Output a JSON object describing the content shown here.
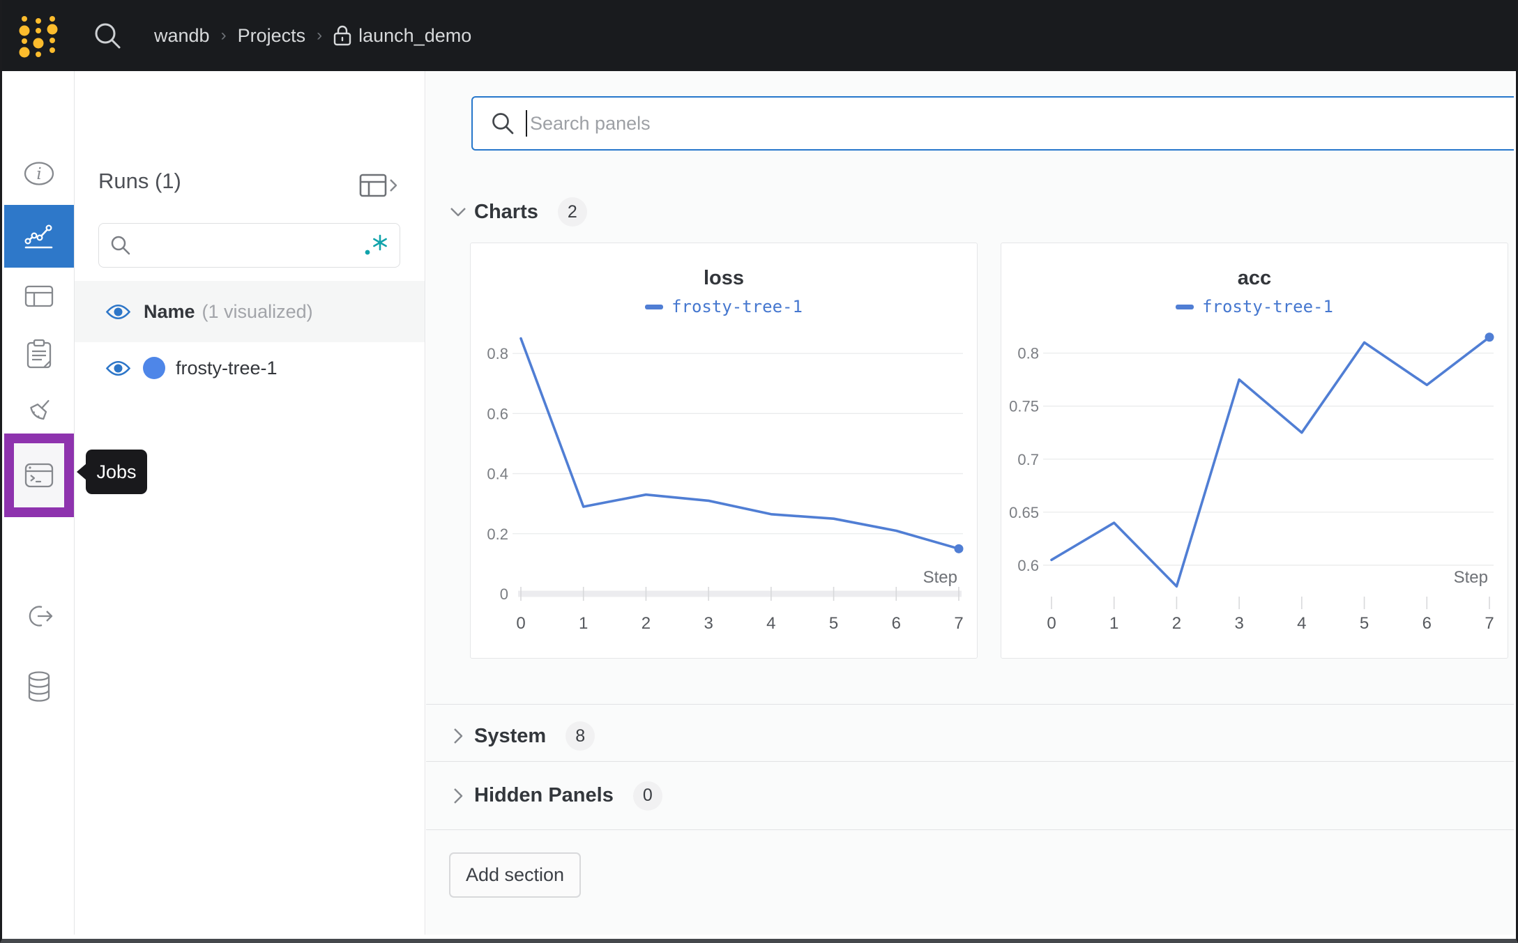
{
  "topbar": {
    "breadcrumb": {
      "team": "wandb",
      "section": "Projects",
      "project": "launch_demo",
      "separator": "›"
    }
  },
  "sidebar": {
    "selected_color": "#2e78c9",
    "highlight_color": "#8e33ae",
    "tooltip": "Jobs",
    "items": [
      {
        "name": "overview",
        "icon": "info-icon",
        "selected": false
      },
      {
        "name": "workspace",
        "icon": "line-chart-icon",
        "selected": true
      },
      {
        "name": "runs-table",
        "icon": "table-icon",
        "selected": false
      },
      {
        "name": "logs",
        "icon": "clipboard-icon",
        "selected": false
      },
      {
        "name": "sweeps",
        "icon": "broom-icon",
        "selected": false
      },
      {
        "name": "jobs",
        "icon": "terminal-icon",
        "selected": false,
        "highlighted": true
      },
      {
        "name": "automations",
        "icon": "link-arrow-icon",
        "selected": false
      },
      {
        "name": "artifacts",
        "icon": "database-icon",
        "selected": false
      }
    ]
  },
  "runs_panel": {
    "title": "Runs (1)",
    "search": {
      "value": "",
      "placeholder": "",
      "regex_icon": ".*",
      "regex_color": "#11a3ab"
    },
    "header_row": {
      "label": "Name",
      "sublabel": "(1 visualized)"
    },
    "runs": [
      {
        "name": "frosty-tree-1",
        "color": "#4e86e8",
        "visible": true
      }
    ]
  },
  "main": {
    "search": {
      "placeholder": "Search panels"
    },
    "sections": [
      {
        "label": "Charts",
        "count": "2",
        "expanded": true
      },
      {
        "label": "System",
        "count": "8",
        "expanded": false
      },
      {
        "label": "Hidden Panels",
        "count": "0",
        "expanded": false
      }
    ],
    "add_section_label": "Add section"
  },
  "chart_data": [
    {
      "type": "line",
      "title": "loss",
      "x": [
        0,
        1,
        2,
        3,
        4,
        5,
        6,
        7
      ],
      "series": [
        {
          "name": "frosty-tree-1",
          "values": [
            0.85,
            0.29,
            0.33,
            0.31,
            0.265,
            0.25,
            0.21,
            0.15
          ]
        }
      ],
      "xlabel": "Step",
      "ylabel": "",
      "y_ticks": [
        0,
        0.2,
        0.4,
        0.6,
        0.8
      ],
      "x_ticks": [
        0,
        1,
        2,
        3,
        4,
        5,
        6,
        7
      ],
      "ylim": [
        0,
        0.9
      ],
      "grid": true,
      "show_zero_axis": true,
      "marker_on_last_point": true,
      "line_color": "#507ed4",
      "legend_position": "top"
    },
    {
      "type": "line",
      "title": "acc",
      "x": [
        0,
        1,
        2,
        3,
        4,
        5,
        6,
        7
      ],
      "series": [
        {
          "name": "frosty-tree-1",
          "values": [
            0.605,
            0.64,
            0.58,
            0.775,
            0.725,
            0.81,
            0.77,
            0.815
          ]
        }
      ],
      "xlabel": "Step",
      "ylabel": "",
      "y_ticks": [
        0.6,
        0.65,
        0.7,
        0.75,
        0.8
      ],
      "x_ticks": [
        0,
        1,
        2,
        3,
        4,
        5,
        6,
        7
      ],
      "ylim": [
        0.573,
        0.828
      ],
      "grid": true,
      "show_zero_axis": false,
      "marker_on_last_point": true,
      "line_color": "#507ed4",
      "legend_position": "top"
    }
  ]
}
